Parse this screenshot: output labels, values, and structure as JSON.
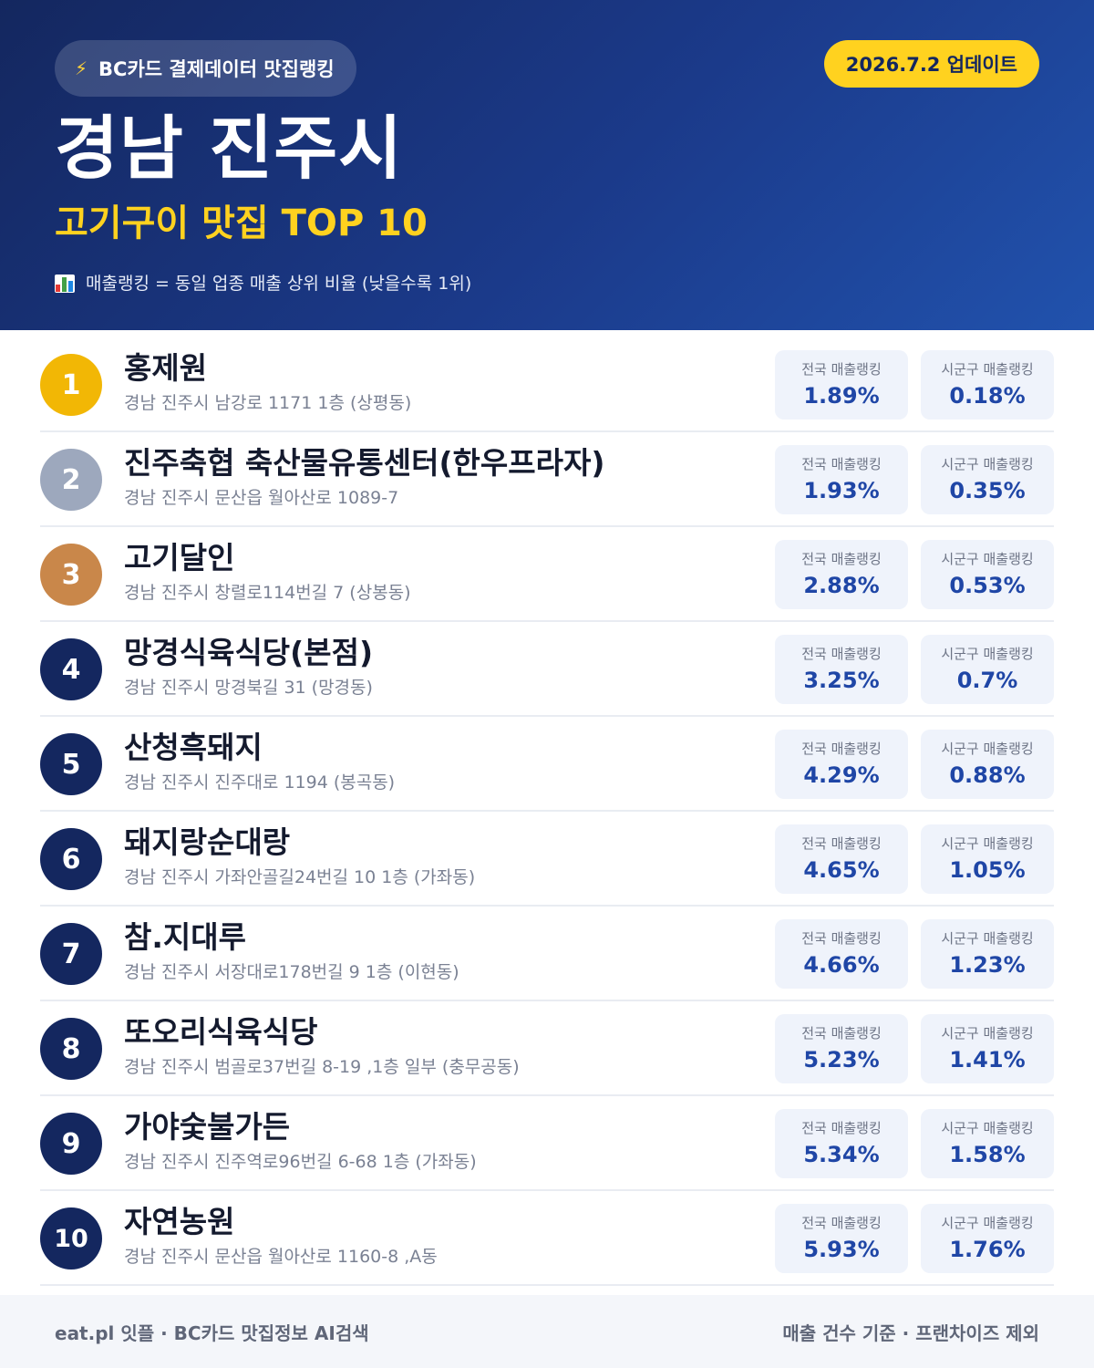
{
  "header": {
    "pill_label": "BC카드 결제데이터 맛집랭킹",
    "update_label": "2026.7.2 업데이트",
    "city": "경남 진주시",
    "subtitle": "고기구이 맛집 TOP 10",
    "note": "매출랭킹 = 동일 업종 매출 상위 비율 (낮을수록 1위)"
  },
  "labels": {
    "national": "전국 매출랭킹",
    "local": "시군구 매출랭킹"
  },
  "restaurants": [
    {
      "rank": "1",
      "name": "홍제원",
      "address": "경남 진주시 남강로 1171 1층 (상평동)",
      "national": "1.89%",
      "local": "0.18%"
    },
    {
      "rank": "2",
      "name": "진주축협 축산물유통센터(한우프라자)",
      "address": "경남 진주시 문산읍 월아산로 1089-7",
      "national": "1.93%",
      "local": "0.35%"
    },
    {
      "rank": "3",
      "name": "고기달인",
      "address": "경남 진주시 창렬로114번길 7 (상봉동)",
      "national": "2.88%",
      "local": "0.53%"
    },
    {
      "rank": "4",
      "name": "망경식육식당(본점)",
      "address": "경남 진주시 망경북길 31 (망경동)",
      "national": "3.25%",
      "local": "0.7%"
    },
    {
      "rank": "5",
      "name": "산청흑돼지",
      "address": "경남 진주시 진주대로 1194 (봉곡동)",
      "national": "4.29%",
      "local": "0.88%"
    },
    {
      "rank": "6",
      "name": "돼지랑순대랑",
      "address": "경남 진주시 가좌안골길24번길 10 1층 (가좌동)",
      "national": "4.65%",
      "local": "1.05%"
    },
    {
      "rank": "7",
      "name": "참.지대루",
      "address": "경남 진주시 서장대로178번길 9 1층 (이현동)",
      "national": "4.66%",
      "local": "1.23%"
    },
    {
      "rank": "8",
      "name": "또오리식육식당",
      "address": "경남 진주시 범골로37번길 8-19 ,1층 일부 (충무공동)",
      "national": "5.23%",
      "local": "1.41%"
    },
    {
      "rank": "9",
      "name": "가야숯불가든",
      "address": "경남 진주시 진주역로96번길 6-68 1층 (가좌동)",
      "national": "5.34%",
      "local": "1.58%"
    },
    {
      "rank": "10",
      "name": "자연농원",
      "address": "경남 진주시 문산읍 월아산로 1160-8 ,A동",
      "national": "5.93%",
      "local": "1.76%"
    }
  ],
  "footer": {
    "left": "eat.pl 잇플 · BC카드 맛집정보 AI검색",
    "right": "매출 건수 기준 · 프랜차이즈 제외"
  },
  "icons": {
    "pill": "lightning-bolt-icon",
    "note": "bar-chart-icon"
  },
  "colors": {
    "header_dark": "#14275f",
    "header_light": "#2152ad",
    "accent_yellow": "#ffd21f",
    "gold": "#f2b705",
    "silver": "#9da8bd",
    "bronze": "#c9874a",
    "value_blue": "#1f46a6"
  }
}
